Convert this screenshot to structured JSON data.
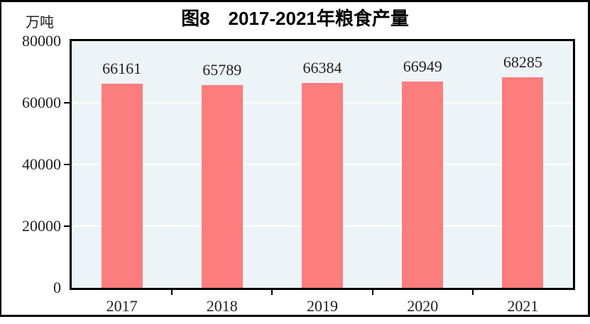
{
  "figure": {
    "title": "图8　2017-2021年粮食产量",
    "unit_label": "万吨"
  },
  "chart_data": {
    "type": "bar",
    "title": "图8　2017-2021年粮食产量",
    "ylabel": "万吨",
    "xlabel": "",
    "categories": [
      "2017",
      "2018",
      "2019",
      "2020",
      "2021"
    ],
    "values": [
      66161,
      65789,
      66384,
      66949,
      68285
    ],
    "value_labels": [
      "66161",
      "65789",
      "66384",
      "66949",
      "68285"
    ],
    "ylim": [
      0,
      80000
    ],
    "yticks": [
      0,
      20000,
      40000,
      60000,
      80000
    ],
    "ytick_labels": [
      "0",
      "20000",
      "40000",
      "60000",
      "80000"
    ],
    "grid": "horizontal white gridlines at 20000/40000/60000",
    "legend": "none",
    "colors": {
      "bar": "#FC7D7D",
      "plot_background": "#EDF4F8",
      "gridline": "#FFFFFF",
      "axis": "#000000",
      "text": "#222222"
    }
  }
}
